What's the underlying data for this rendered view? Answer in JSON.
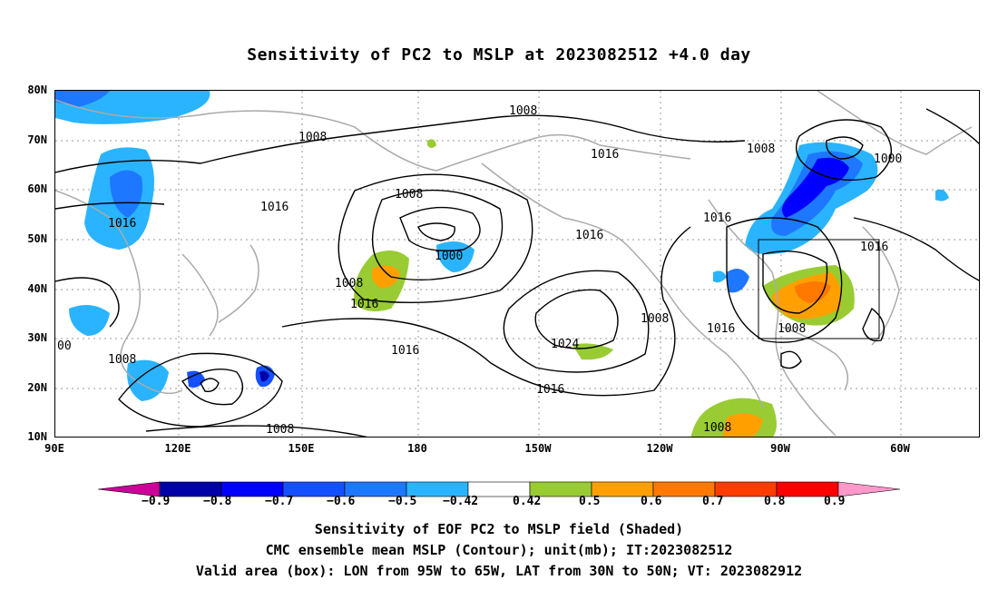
{
  "title": "Sensitivity of PC2 to MSLP at 2023082512 +4.0 day",
  "map": {
    "lat_labels": [
      "80N",
      "70N",
      "60N",
      "50N",
      "40N",
      "30N",
      "20N",
      "10N"
    ],
    "lon_labels": [
      "90E",
      "120E",
      "150E",
      "180",
      "150W",
      "120W",
      "90W",
      "60W"
    ],
    "contour_labels": [
      {
        "text": "1008"
      },
      {
        "text": "1008"
      },
      {
        "text": "1016"
      },
      {
        "text": "1008"
      },
      {
        "text": "1016"
      },
      {
        "text": "1016"
      },
      {
        "text": "1008"
      },
      {
        "text": "1000"
      },
      {
        "text": "1016"
      },
      {
        "text": "1008"
      },
      {
        "text": "1016"
      },
      {
        "text": "1024"
      },
      {
        "text": "1016"
      },
      {
        "text": "1016"
      },
      {
        "text": "1008"
      },
      {
        "text": "1016"
      },
      {
        "text": "1008"
      },
      {
        "text": "1000"
      },
      {
        "text": "1016"
      },
      {
        "text": "1016"
      },
      {
        "text": "1008"
      },
      {
        "text": "1008"
      },
      {
        "text": "1008"
      },
      {
        "text": "00"
      }
    ],
    "valid_box": {
      "lon_west": "95W",
      "lon_east": "65W",
      "lat_south": "30N",
      "lat_north": "50N"
    }
  },
  "colorbar": {
    "labels": [
      "−0.9",
      "−0.8",
      "−0.7",
      "−0.6",
      "−0.5",
      "−0.42",
      "0.42",
      "0.5",
      "0.6",
      "0.7",
      "0.8",
      "0.9"
    ],
    "colors": [
      "#cc0099",
      "#0000a8",
      "#0000ff",
      "#1450ff",
      "#1e78ff",
      "#2ab4ff",
      "#ffffff",
      "#99cc33",
      "#ffa000",
      "#ff7800",
      "#ff3c00",
      "#ff0000",
      "#ff99cc"
    ]
  },
  "footer": {
    "line1": "Sensitivity of EOF PC2 to MSLP field (Shaded)",
    "line2": "CMC ensemble mean MSLP (Contour); unit(mb); IT:2023082512",
    "line3": "Valid area (box): LON from 95W to 65W, LAT from 30N to 50N; VT: 2023082912"
  }
}
